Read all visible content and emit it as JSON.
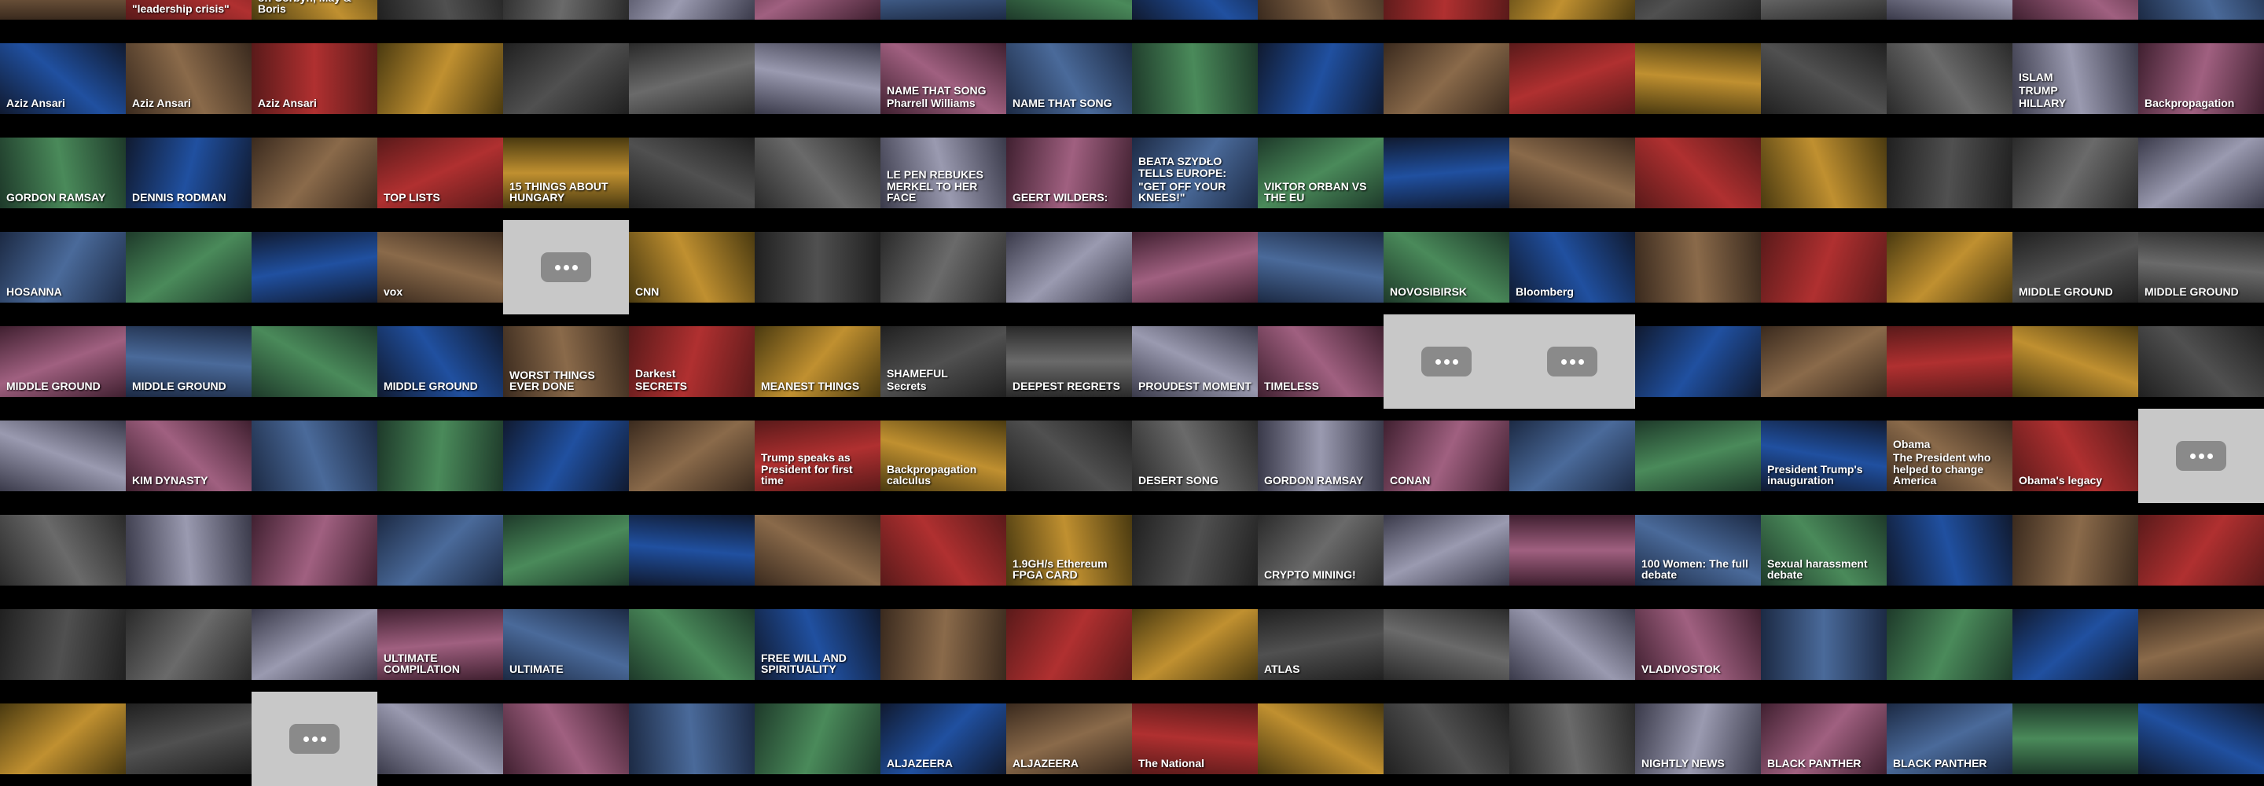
{
  "rows": [
    [
      [],
      [
        "\"leadership crisis\""
      ],
      [
        "on Corbyn, May & Boris"
      ],
      [],
      [],
      [],
      [],
      [],
      [],
      [],
      [],
      [],
      [],
      [],
      [],
      [],
      [],
      []
    ],
    [
      [
        "Aziz Ansari"
      ],
      [
        "Aziz Ansari"
      ],
      [
        "Aziz Ansari"
      ],
      [],
      [],
      [],
      [],
      [
        "NAME THAT SONG",
        "Pharrell Williams"
      ],
      [
        "NAME THAT SONG"
      ],
      [],
      [],
      [],
      [],
      [],
      [],
      [],
      [
        "ISLAM",
        "TRUMP",
        "HILLARY"
      ],
      [
        "Backpropagation"
      ]
    ],
    [
      [
        "GORDON RAMSAY"
      ],
      [
        "DENNIS RODMAN"
      ],
      [],
      [
        "TOP LISTS"
      ],
      [
        "15 THINGS ABOUT HUNGARY"
      ],
      [],
      [],
      [
        "LE PEN REBUKES MERKEL TO HER FACE"
      ],
      [
        "GEERT WILDERS:"
      ],
      [
        "BEATA SZYDŁO TELLS EUROPE:",
        "\"GET OFF YOUR KNEES!\""
      ],
      [
        "VIKTOR ORBAN VS THE EU"
      ],
      [],
      [],
      [],
      [],
      [],
      [],
      []
    ],
    [
      [
        "HOSANNA"
      ],
      [],
      [],
      [
        "vox"
      ],
      [],
      [
        "CNN"
      ],
      [],
      [],
      [],
      [],
      [],
      [
        "NOVOSIBIRSK"
      ],
      [
        "Bloomberg"
      ],
      [],
      [],
      [],
      [
        "MIDDLE GROUND"
      ],
      [
        "MIDDLE GROUND"
      ]
    ],
    [
      [
        "MIDDLE GROUND"
      ],
      [
        "MIDDLE GROUND"
      ],
      [],
      [
        "MIDDLE GROUND"
      ],
      [
        "WORST THINGS EVER DONE"
      ],
      [
        "Darkest",
        "SECRETS"
      ],
      [
        "MEANEST THINGS"
      ],
      [
        "SHAMEFUL",
        "Secrets"
      ],
      [
        "DEEPEST REGRETS"
      ],
      [
        "PROUDEST MOMENT"
      ],
      [
        "TIMELESS"
      ],
      [],
      [],
      [],
      [],
      [],
      [],
      []
    ],
    [
      [],
      [
        "KIM DYNASTY"
      ],
      [],
      [],
      [],
      [],
      [
        "Trump speaks as President for first time"
      ],
      [
        "Backpropagation calculus"
      ],
      [],
      [
        "DESERT SONG"
      ],
      [
        "GORDON RAMSAY"
      ],
      [
        "CONAN"
      ],
      [],
      [],
      [
        "President Trump's inauguration"
      ],
      [
        "Obama",
        "The President who helped to change America"
      ],
      [
        "Obama's legacy"
      ],
      []
    ],
    [
      [],
      [],
      [],
      [],
      [],
      [],
      [],
      [],
      [
        "1.9GH/s Ethereum FPGA CARD"
      ],
      [],
      [
        "CRYPTO MINING!"
      ],
      [],
      [],
      [
        "100 Women: The full debate"
      ],
      [
        "Sexual harassment debate"
      ],
      [],
      [],
      []
    ],
    [
      [],
      [],
      [],
      [
        "ULTIMATE COMPILATION"
      ],
      [
        "ULTIMATE"
      ],
      [],
      [
        "FREE WILL AND SPIRITUALITY"
      ],
      [],
      [],
      [],
      [
        "ATLAS"
      ],
      [],
      [],
      [
        "VLADIVOSTOK"
      ],
      [],
      [],
      [],
      []
    ],
    [
      [],
      [],
      [],
      [],
      [],
      [],
      [],
      [
        "ALJAZEERA"
      ],
      [
        "ALJAZEERA"
      ],
      [
        "The National"
      ],
      [],
      [],
      [],
      [
        "NIGHTLY NEWS"
      ],
      [
        "BLACK PANTHER"
      ],
      [
        "BLACK PANTHER"
      ],
      [],
      []
    ]
  ]
}
